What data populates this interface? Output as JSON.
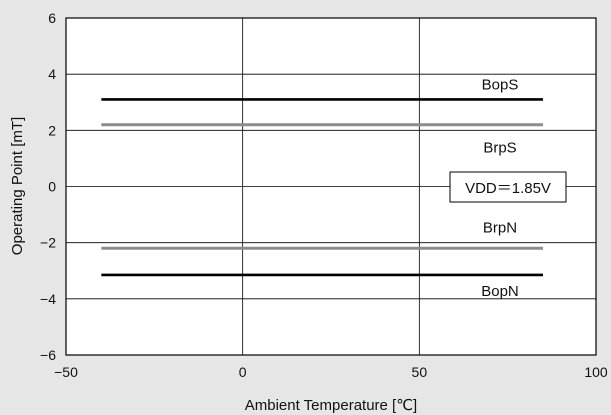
{
  "chart_data": {
    "type": "line",
    "xlabel": "Ambient Temperature [℃]",
    "ylabel": "Operating Point [mT]",
    "xlim": [
      -50,
      100
    ],
    "ylim": [
      -6,
      6
    ],
    "xticks": [
      -50,
      0,
      50,
      100
    ],
    "yticks": [
      -6,
      -4,
      -2,
      0,
      2,
      4,
      6
    ],
    "xtick_labels": [
      "−50",
      "0",
      "50",
      "100"
    ],
    "ytick_labels": [
      "−6",
      "−4",
      "−2",
      "0",
      "2",
      "4",
      "6"
    ],
    "grid": true,
    "series": [
      {
        "name": "BopS",
        "x": [
          -40,
          85
        ],
        "y": [
          3.1,
          3.1
        ],
        "color": "#000000"
      },
      {
        "name": "BrpS",
        "x": [
          -40,
          85
        ],
        "y": [
          2.2,
          2.2
        ],
        "color": "#8c8c8c"
      },
      {
        "name": "BrpN",
        "x": [
          -40,
          85
        ],
        "y": [
          -2.2,
          -2.2
        ],
        "color": "#8c8c8c"
      },
      {
        "name": "BopN",
        "x": [
          -40,
          85
        ],
        "y": [
          -3.15,
          -3.15
        ],
        "color": "#000000"
      }
    ],
    "annotations": [
      {
        "text": "VDD＝1.85V",
        "boxed": true
      }
    ]
  }
}
